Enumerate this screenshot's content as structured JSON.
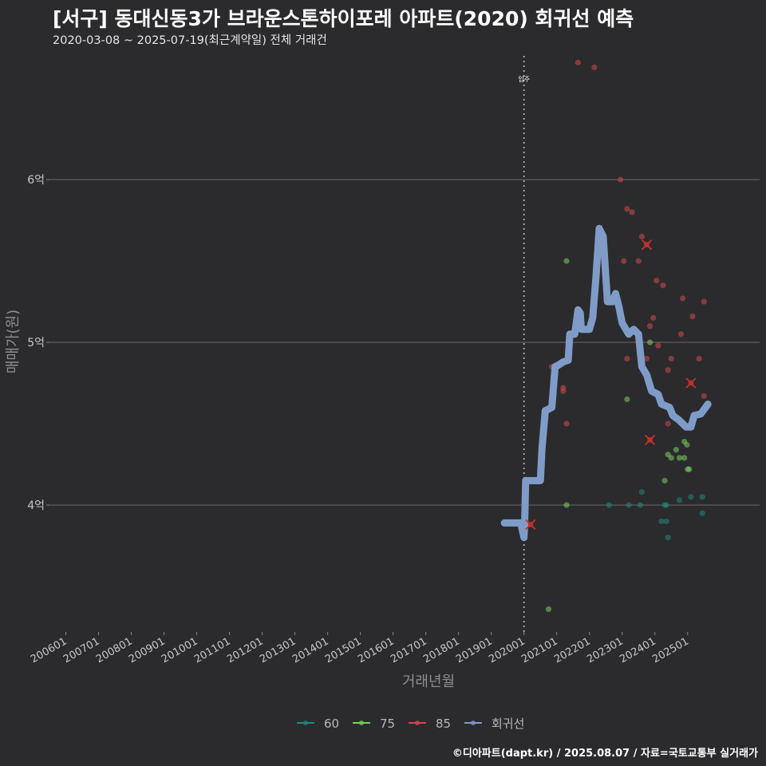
{
  "header": {
    "title": "[서구] 동대신동3가 브라운스톤하이포레 아파트(2020) 회귀선 예측",
    "subtitle": "2020-03-08 ~ 2025-07-19(최근계약일) 전체 거래건",
    "credit": "©디아파트(dapt.kr) / 2025.08.07 / 자료=국토교통부 실거래가"
  },
  "chart_data": {
    "type": "scatter",
    "title": "[서구] 동대신동3가 브라운스톤하이포레 아파트(2020) 회귀선 예측",
    "xlabel": "거래년월",
    "ylabel": "매매가(원)",
    "xlim": [
      2005.5,
      2027.2
    ],
    "ylim": [
      3.22,
      6.8
    ],
    "x_ticks": [
      2006,
      2007,
      2008,
      2009,
      2010,
      2011,
      2012,
      2013,
      2014,
      2015,
      2016,
      2017,
      2018,
      2019,
      2020,
      2021,
      2022,
      2023,
      2024,
      2025
    ],
    "x_tick_labels": [
      "200601",
      "200701",
      "200801",
      "200901",
      "201001",
      "201101",
      "201201",
      "201301",
      "201401",
      "201501",
      "201601",
      "201701",
      "201801",
      "201901",
      "202001",
      "202101",
      "202201",
      "202301",
      "202401",
      "202501"
    ],
    "y_ticks": [
      4,
      5,
      6
    ],
    "y_tick_labels": [
      "4억",
      "5억",
      "6억"
    ],
    "vline": {
      "x": 2020.0,
      "label": "입주"
    },
    "series": [
      {
        "name": "60",
        "color": "#1f8a7a",
        "points": [
          [
            2022.6,
            4.0
          ],
          [
            2023.2,
            4.0
          ],
          [
            2023.6,
            4.08
          ],
          [
            2023.55,
            4.0
          ],
          [
            2024.2,
            3.9
          ],
          [
            2024.4,
            3.8
          ],
          [
            2024.3,
            4.0
          ],
          [
            2024.35,
            4.0
          ],
          [
            2024.75,
            4.03
          ],
          [
            2025.1,
            4.05
          ],
          [
            2025.45,
            4.05
          ],
          [
            2025.45,
            3.95
          ],
          [
            2024.35,
            3.9
          ]
        ]
      },
      {
        "name": "75",
        "color": "#7ccf5e",
        "points": [
          [
            2020.75,
            3.36
          ],
          [
            2021.3,
            5.5
          ],
          [
            2021.3,
            4.0
          ],
          [
            2023.15,
            4.65
          ],
          [
            2023.85,
            5.0
          ],
          [
            2024.3,
            4.15
          ],
          [
            2024.4,
            4.31
          ],
          [
            2024.5,
            4.29
          ],
          [
            2024.65,
            4.34
          ],
          [
            2024.75,
            4.29
          ],
          [
            2024.9,
            4.29
          ],
          [
            2024.9,
            4.39
          ],
          [
            2025.0,
            4.22
          ],
          [
            2024.98,
            4.37
          ],
          [
            2025.05,
            4.22
          ]
        ]
      },
      {
        "name": "85",
        "color": "#d14a4a",
        "points": [
          [
            2020.2,
            3.88
          ],
          [
            2020.85,
            4.85
          ],
          [
            2021.2,
            4.72
          ],
          [
            2021.2,
            4.7
          ],
          [
            2021.3,
            4.5
          ],
          [
            2021.65,
            6.72
          ],
          [
            2022.15,
            6.69
          ],
          [
            2022.95,
            6.0
          ],
          [
            2023.05,
            5.5
          ],
          [
            2023.15,
            5.82
          ],
          [
            2023.3,
            5.8
          ],
          [
            2023.5,
            5.5
          ],
          [
            2023.6,
            5.65
          ],
          [
            2023.75,
            5.6
          ],
          [
            2023.85,
            5.1
          ],
          [
            2023.95,
            5.15
          ],
          [
            2023.75,
            4.9
          ],
          [
            2023.15,
            4.9
          ],
          [
            2023.85,
            4.4
          ],
          [
            2024.05,
            5.38
          ],
          [
            2024.1,
            4.98
          ],
          [
            2024.25,
            5.35
          ],
          [
            2024.4,
            4.83
          ],
          [
            2024.4,
            4.5
          ],
          [
            2024.5,
            4.9
          ],
          [
            2024.85,
            5.27
          ],
          [
            2024.8,
            5.05
          ],
          [
            2025.1,
            4.75
          ],
          [
            2025.15,
            5.16
          ],
          [
            2025.35,
            4.9
          ],
          [
            2025.5,
            5.25
          ],
          [
            2025.5,
            4.67
          ]
        ]
      },
      {
        "name": "회귀선",
        "color": "#7f9cc9",
        "points": [
          [
            2019.4,
            3.89
          ],
          [
            2019.9,
            3.89
          ],
          [
            2020.0,
            3.8
          ],
          [
            2020.02,
            3.88
          ],
          [
            2020.05,
            4.15
          ],
          [
            2020.5,
            4.15
          ],
          [
            2020.55,
            4.35
          ],
          [
            2020.65,
            4.58
          ],
          [
            2020.85,
            4.6
          ],
          [
            2020.95,
            4.85
          ],
          [
            2021.05,
            4.86
          ],
          [
            2021.2,
            4.88
          ],
          [
            2021.35,
            4.89
          ],
          [
            2021.4,
            5.05
          ],
          [
            2021.55,
            5.05
          ],
          [
            2021.65,
            5.2
          ],
          [
            2021.72,
            5.18
          ],
          [
            2021.75,
            5.08
          ],
          [
            2022.0,
            5.08
          ],
          [
            2022.1,
            5.15
          ],
          [
            2022.2,
            5.4
          ],
          [
            2022.3,
            5.7
          ],
          [
            2022.42,
            5.65
          ],
          [
            2022.55,
            5.25
          ],
          [
            2022.7,
            5.25
          ],
          [
            2022.8,
            5.3
          ],
          [
            2022.9,
            5.22
          ],
          [
            2023.0,
            5.12
          ],
          [
            2023.2,
            5.05
          ],
          [
            2023.35,
            5.08
          ],
          [
            2023.5,
            5.05
          ],
          [
            2023.6,
            4.85
          ],
          [
            2023.75,
            4.8
          ],
          [
            2023.9,
            4.7
          ],
          [
            2024.1,
            4.68
          ],
          [
            2024.2,
            4.62
          ],
          [
            2024.45,
            4.6
          ],
          [
            2024.55,
            4.55
          ],
          [
            2024.75,
            4.52
          ],
          [
            2024.95,
            4.48
          ],
          [
            2025.1,
            4.48
          ],
          [
            2025.2,
            4.55
          ],
          [
            2025.4,
            4.56
          ],
          [
            2025.55,
            4.6
          ],
          [
            2025.62,
            4.62
          ]
        ]
      }
    ],
    "highlight_x_markers": [
      [
        2023.75,
        5.6
      ],
      [
        2023.85,
        4.4
      ],
      [
        2025.1,
        4.75
      ],
      [
        2020.2,
        3.88
      ]
    ],
    "legend": {
      "position": "bottom",
      "entries": [
        {
          "name": "60",
          "color": "#1f8a7a"
        },
        {
          "name": "75",
          "color": "#7ccf5e"
        },
        {
          "name": "85",
          "color": "#d14a4a"
        },
        {
          "name": "회귀선",
          "color": "#7f9cc9"
        }
      ]
    },
    "grid": true
  }
}
